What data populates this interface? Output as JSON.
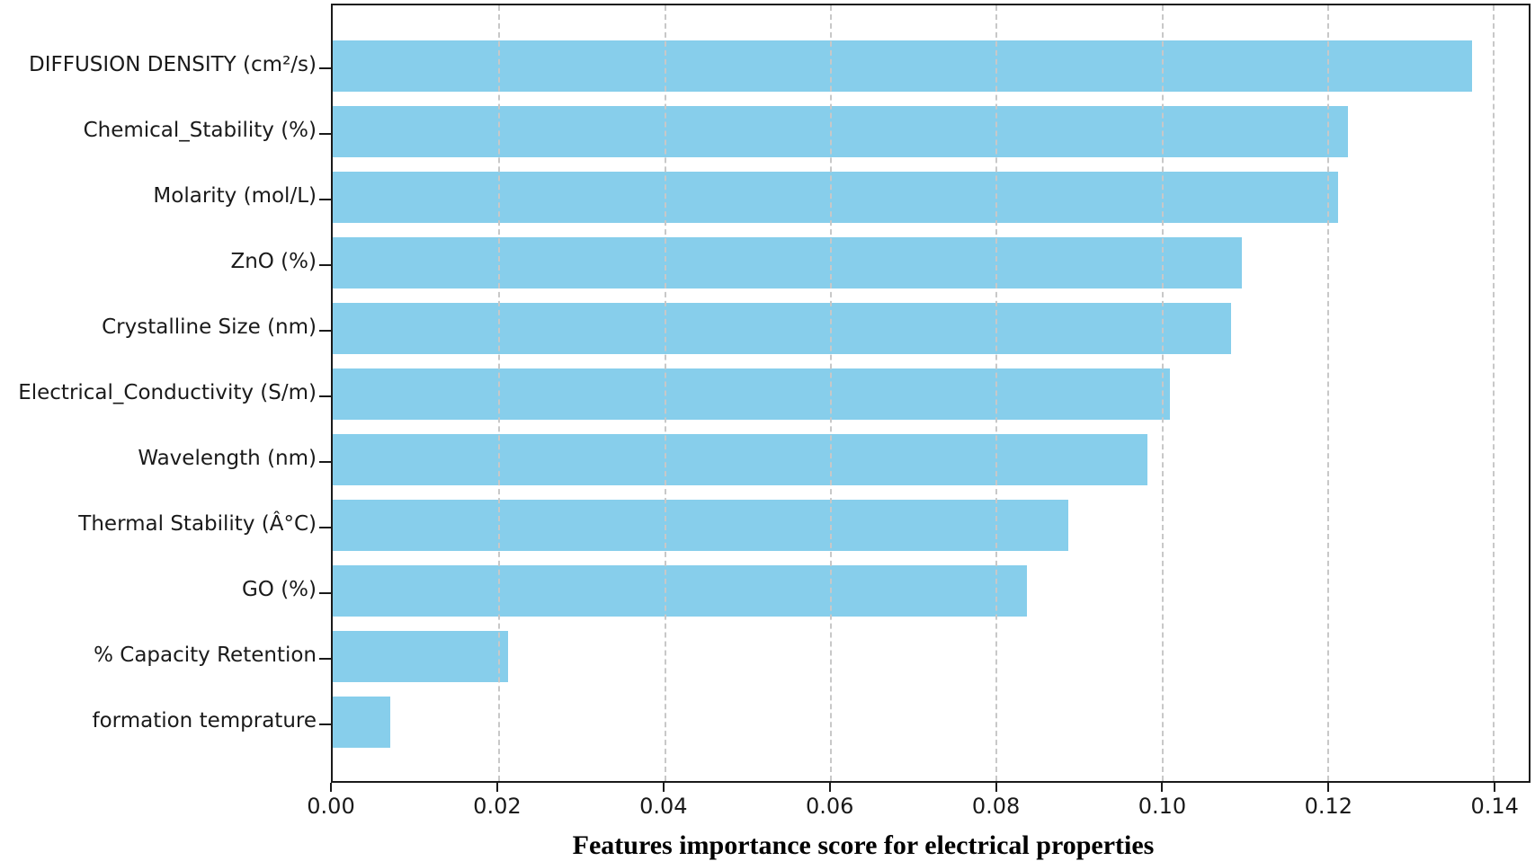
{
  "chart_data": {
    "type": "bar",
    "orientation": "horizontal",
    "title": "",
    "xlabel": "Features importance score for electrical properties",
    "ylabel": "",
    "categories": [
      "DIFFUSION DENSITY (cm²/s)",
      "Chemical_Stability (%)",
      "Molarity (mol/L)",
      "ZnO (%)",
      "Crystalline Size (nm)",
      "Electrical_Conductivity (S/m)",
      "Wavelength (nm)",
      "Thermal Stability (Â°C)",
      "GO (%)",
      "% Capacity Retention",
      "formation temprature"
    ],
    "values": [
      0.1375,
      0.1225,
      0.1213,
      0.1097,
      0.1084,
      0.101,
      0.0983,
      0.0888,
      0.0838,
      0.0212,
      0.0069
    ],
    "xlim": [
      0,
      0.1443
    ],
    "xticks": [
      {
        "value": 0.0,
        "label": "0.00"
      },
      {
        "value": 0.02,
        "label": "0.02"
      },
      {
        "value": 0.04,
        "label": "0.04"
      },
      {
        "value": 0.06,
        "label": "0.06"
      },
      {
        "value": 0.08,
        "label": "0.08"
      },
      {
        "value": 0.1,
        "label": "0.10"
      },
      {
        "value": 0.12,
        "label": "0.12"
      },
      {
        "value": 0.14,
        "label": "0.14"
      },
      {
        "value": 0.1443,
        "label": ""
      }
    ],
    "grid": "vertical dashed",
    "legend": "none",
    "bar_color": "#87CEEB",
    "grid_color": "#c8c8c8",
    "spine_color": "#1a1a1a",
    "text_color": "#1a1a1a"
  }
}
